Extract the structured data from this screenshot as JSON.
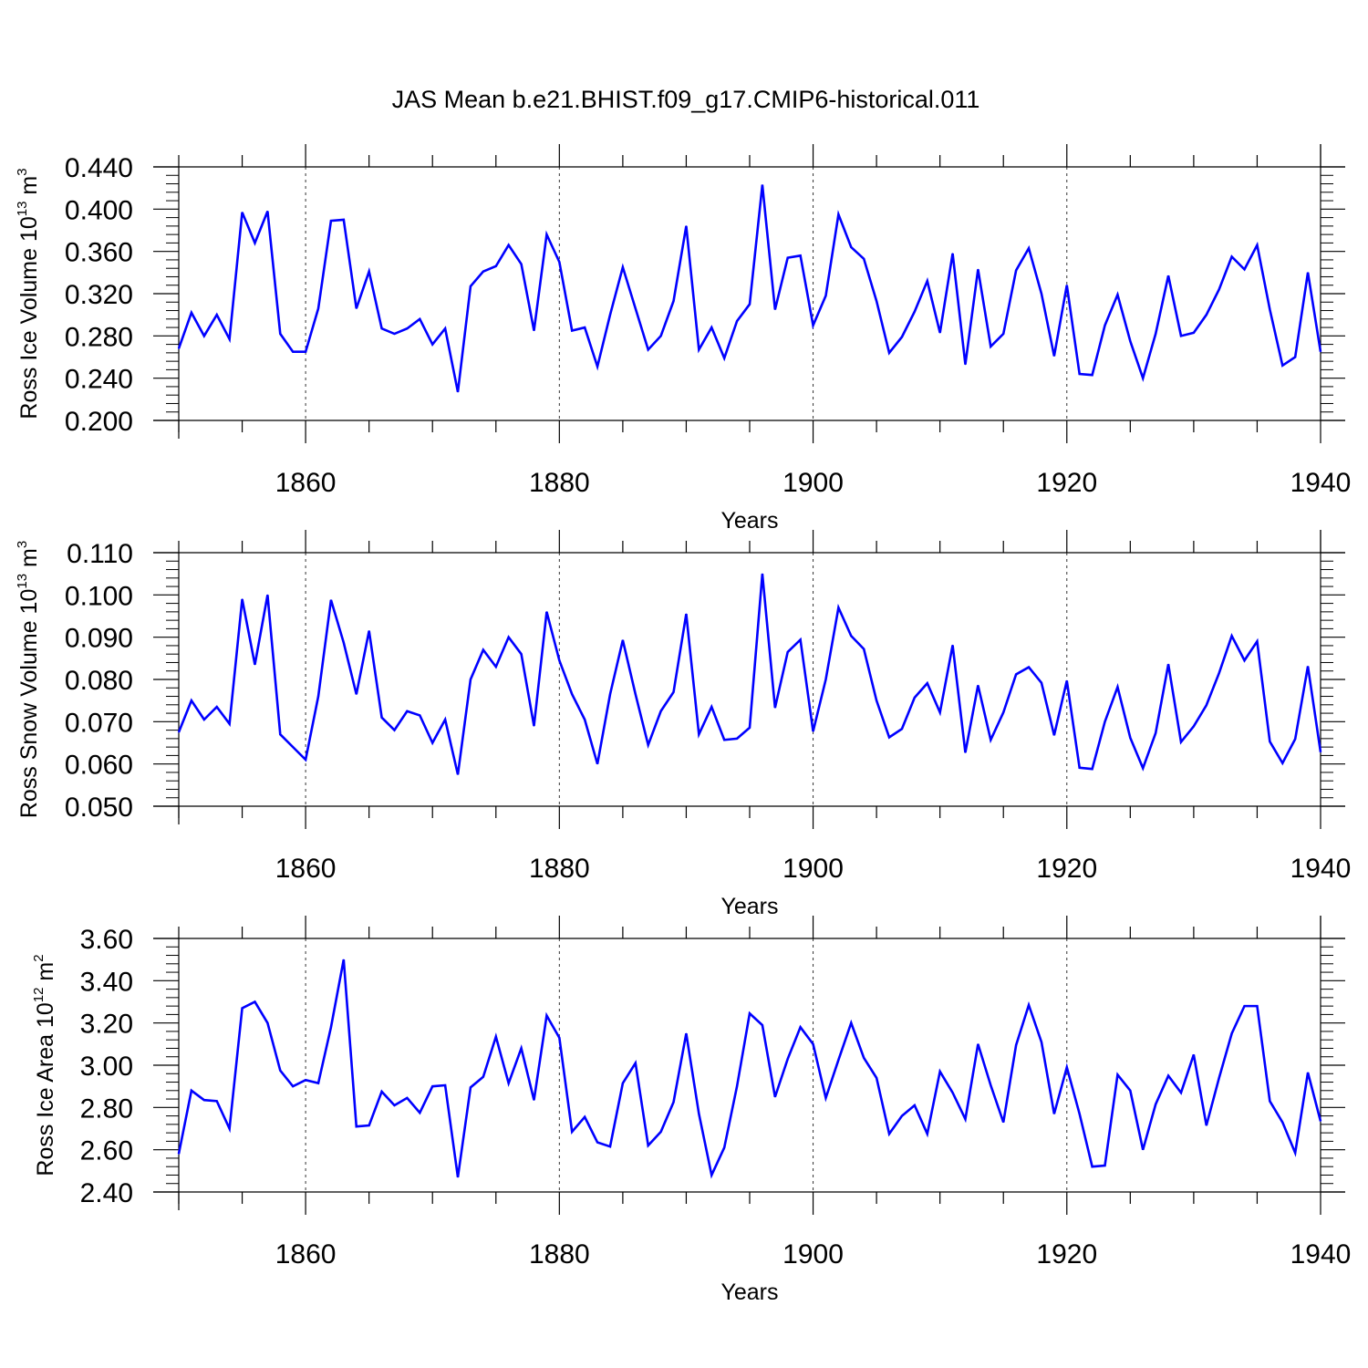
{
  "title": "JAS Mean b.e21.BHIST.f09_g17.CMIP6-historical.011",
  "colors": {
    "series": "#0000ff",
    "axes": "#000000",
    "grid": "#000000"
  },
  "chart_data": [
    {
      "type": "line",
      "xlabel": "Years",
      "ylabel": {
        "text": "Ross Ice Volume 10",
        "sup1": "13",
        "mid": " m",
        "sup2": "3"
      },
      "xlim": [
        1850,
        1940
      ],
      "ylim": [
        0.2,
        0.44
      ],
      "xticks": [
        "1860",
        "1880",
        "1900",
        "1920",
        "1940"
      ],
      "yticks": [
        "0.200",
        "0.240",
        "0.280",
        "0.320",
        "0.360",
        "0.400",
        "0.440"
      ],
      "grid_x": true,
      "series": [
        {
          "x_start": 1850,
          "values": [
            0.268,
            0.302,
            0.28,
            0.3,
            0.277,
            0.397,
            0.368,
            0.398,
            0.282,
            0.265,
            0.265,
            0.306,
            0.389,
            0.39,
            0.306,
            0.341,
            0.287,
            0.282,
            0.287,
            0.296,
            0.272,
            0.287,
            0.227,
            0.327,
            0.341,
            0.346,
            0.366,
            0.348,
            0.285,
            0.376,
            0.35,
            0.285,
            0.288,
            0.251,
            0.3,
            0.345,
            0.306,
            0.267,
            0.28,
            0.313,
            0.384,
            0.267,
            0.288,
            0.259,
            0.294,
            0.31,
            0.423,
            0.305,
            0.354,
            0.356,
            0.29,
            0.318,
            0.395,
            0.364,
            0.353,
            0.313,
            0.264,
            0.279,
            0.303,
            0.332,
            0.283,
            0.358,
            0.253,
            0.343,
            0.27,
            0.282,
            0.342,
            0.363,
            0.32,
            0.261,
            0.328,
            0.244,
            0.243,
            0.29,
            0.319,
            0.275,
            0.24,
            0.282,
            0.337,
            0.28,
            0.283,
            0.3,
            0.324,
            0.355,
            0.343,
            0.366,
            0.305,
            0.252,
            0.26,
            0.34,
            0.265
          ]
        }
      ]
    },
    {
      "type": "line",
      "xlabel": "Years",
      "ylabel": {
        "text": "Ross Snow Volume 10",
        "sup1": "13",
        "mid": " m",
        "sup2": "3"
      },
      "xlim": [
        1850,
        1940
      ],
      "ylim": [
        0.05,
        0.11
      ],
      "xticks": [
        "1860",
        "1880",
        "1900",
        "1920",
        "1940"
      ],
      "yticks": [
        "0.050",
        "0.060",
        "0.070",
        "0.080",
        "0.090",
        "0.100",
        "0.110"
      ],
      "grid_x": true,
      "series": [
        {
          "x_start": 1850,
          "values": [
            0.0675,
            0.075,
            0.0705,
            0.0735,
            0.0695,
            0.099,
            0.0835,
            0.1,
            0.067,
            0.064,
            0.061,
            0.076,
            0.0988,
            0.0887,
            0.0765,
            0.0915,
            0.071,
            0.068,
            0.0725,
            0.0715,
            0.065,
            0.0705,
            0.0575,
            0.08,
            0.087,
            0.083,
            0.09,
            0.086,
            0.069,
            0.096,
            0.0845,
            0.0765,
            0.0705,
            0.06,
            0.0765,
            0.0893,
            0.0765,
            0.0645,
            0.0725,
            0.077,
            0.0955,
            0.067,
            0.0735,
            0.0657,
            0.066,
            0.0686,
            0.105,
            0.0733,
            0.0865,
            0.0894,
            0.0677,
            0.08,
            0.097,
            0.0903,
            0.0872,
            0.075,
            0.0663,
            0.0683,
            0.0757,
            0.0791,
            0.0722,
            0.0881,
            0.0627,
            0.0786,
            0.0657,
            0.0722,
            0.0812,
            0.0829,
            0.0792,
            0.0668,
            0.0797,
            0.0591,
            0.0588,
            0.07,
            0.0782,
            0.0662,
            0.059,
            0.0673,
            0.0836,
            0.0652,
            0.0689,
            0.0739,
            0.0815,
            0.0903,
            0.0845,
            0.089,
            0.0653,
            0.0602,
            0.0659,
            0.0831,
            0.0628
          ]
        }
      ]
    },
    {
      "type": "line",
      "xlabel": "Years",
      "ylabel": {
        "text": "Ross Ice Area 10",
        "sup1": "12",
        "mid": " m",
        "sup2": "2"
      },
      "xlim": [
        1850,
        1940
      ],
      "ylim": [
        2.4,
        3.6
      ],
      "xticks": [
        "1860",
        "1880",
        "1900",
        "1920",
        "1940"
      ],
      "yticks": [
        "2.40",
        "2.60",
        "2.80",
        "3.00",
        "3.20",
        "3.40",
        "3.60"
      ],
      "grid_x": true,
      "series": [
        {
          "x_start": 1850,
          "values": [
            2.58,
            2.88,
            2.835,
            2.83,
            2.7,
            3.27,
            3.3,
            3.2,
            2.975,
            2.9,
            2.93,
            2.915,
            3.18,
            3.5,
            2.71,
            2.715,
            2.875,
            2.81,
            2.845,
            2.775,
            2.9,
            2.905,
            2.47,
            2.895,
            2.945,
            3.135,
            2.915,
            3.08,
            2.835,
            3.235,
            3.13,
            2.685,
            2.755,
            2.635,
            2.615,
            2.915,
            3.01,
            2.62,
            2.685,
            2.825,
            3.15,
            2.77,
            2.48,
            2.61,
            2.9,
            3.245,
            3.19,
            2.85,
            3.03,
            3.18,
            3.1,
            2.845,
            3.025,
            3.2,
            3.035,
            2.94,
            2.675,
            2.76,
            2.81,
            2.675,
            2.97,
            2.87,
            2.745,
            3.1,
            2.905,
            2.73,
            3.095,
            3.285,
            3.11,
            2.77,
            2.99,
            2.77,
            2.52,
            2.525,
            2.955,
            2.88,
            2.6,
            2.815,
            2.95,
            2.87,
            3.05,
            2.715,
            2.94,
            3.15,
            3.28,
            3.28,
            2.83,
            2.73,
            2.585,
            2.965,
            2.735
          ]
        }
      ]
    }
  ]
}
